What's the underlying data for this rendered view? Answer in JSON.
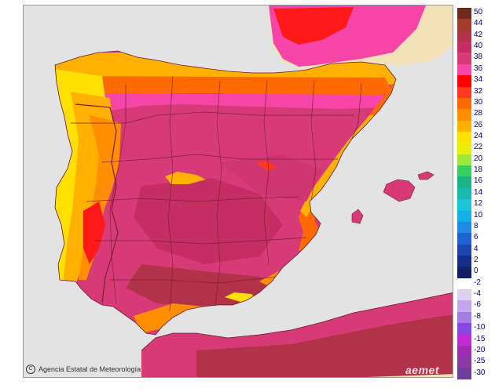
{
  "map": {
    "credit": "Agencia Estatal de Meteorología",
    "copyright_symbol": "C",
    "logo": "aemet",
    "colors": {
      "sea": "#e3e3e3",
      "outside_land": "#f4e2b6",
      "border_line": "#7a1f2e"
    }
  },
  "legend": {
    "items": [
      {
        "label": "50",
        "color": "#6e2a18"
      },
      {
        "label": "44",
        "color": "#a23c2b"
      },
      {
        "label": "42",
        "color": "#b2324a"
      },
      {
        "label": "40",
        "color": "#c42e63"
      },
      {
        "label": "38",
        "color": "#d63b78"
      },
      {
        "label": "36",
        "color": "#f545a9"
      },
      {
        "label": "34",
        "color": "#ff0000"
      },
      {
        "label": "32",
        "color": "#ff3a1c"
      },
      {
        "label": "30",
        "color": "#ff6a00"
      },
      {
        "label": "28",
        "color": "#ff8d00"
      },
      {
        "label": "26",
        "color": "#ffb000"
      },
      {
        "label": "24",
        "color": "#ffe000"
      },
      {
        "label": "22",
        "color": "#e8f00a"
      },
      {
        "label": "20",
        "color": "#9de83a"
      },
      {
        "label": "18",
        "color": "#34d25c"
      },
      {
        "label": "16",
        "color": "#1ab486"
      },
      {
        "label": "14",
        "color": "#19b8b0"
      },
      {
        "label": "12",
        "color": "#18c4d6"
      },
      {
        "label": "10",
        "color": "#14aee6"
      },
      {
        "label": "8",
        "color": "#1d8be3"
      },
      {
        "label": "6",
        "color": "#1d64d0"
      },
      {
        "label": "4",
        "color": "#1a46b0"
      },
      {
        "label": "2",
        "color": "#172f8c"
      },
      {
        "label": "0",
        "color": "#141f6a"
      },
      {
        "label": "-2",
        "color": "#ffffff"
      },
      {
        "label": "-4",
        "color": "#ded0f0"
      },
      {
        "label": "-6",
        "color": "#c4a8ec"
      },
      {
        "label": "-8",
        "color": "#a37ce6"
      },
      {
        "label": "-10",
        "color": "#8a46e0"
      },
      {
        "label": "-15",
        "color": "#c22ad6"
      },
      {
        "label": "-20",
        "color": "#a02ab0"
      },
      {
        "label": "-25",
        "color": "#8a3aa2"
      },
      {
        "label": "-30",
        "color": "#6e3ea0"
      }
    ]
  }
}
